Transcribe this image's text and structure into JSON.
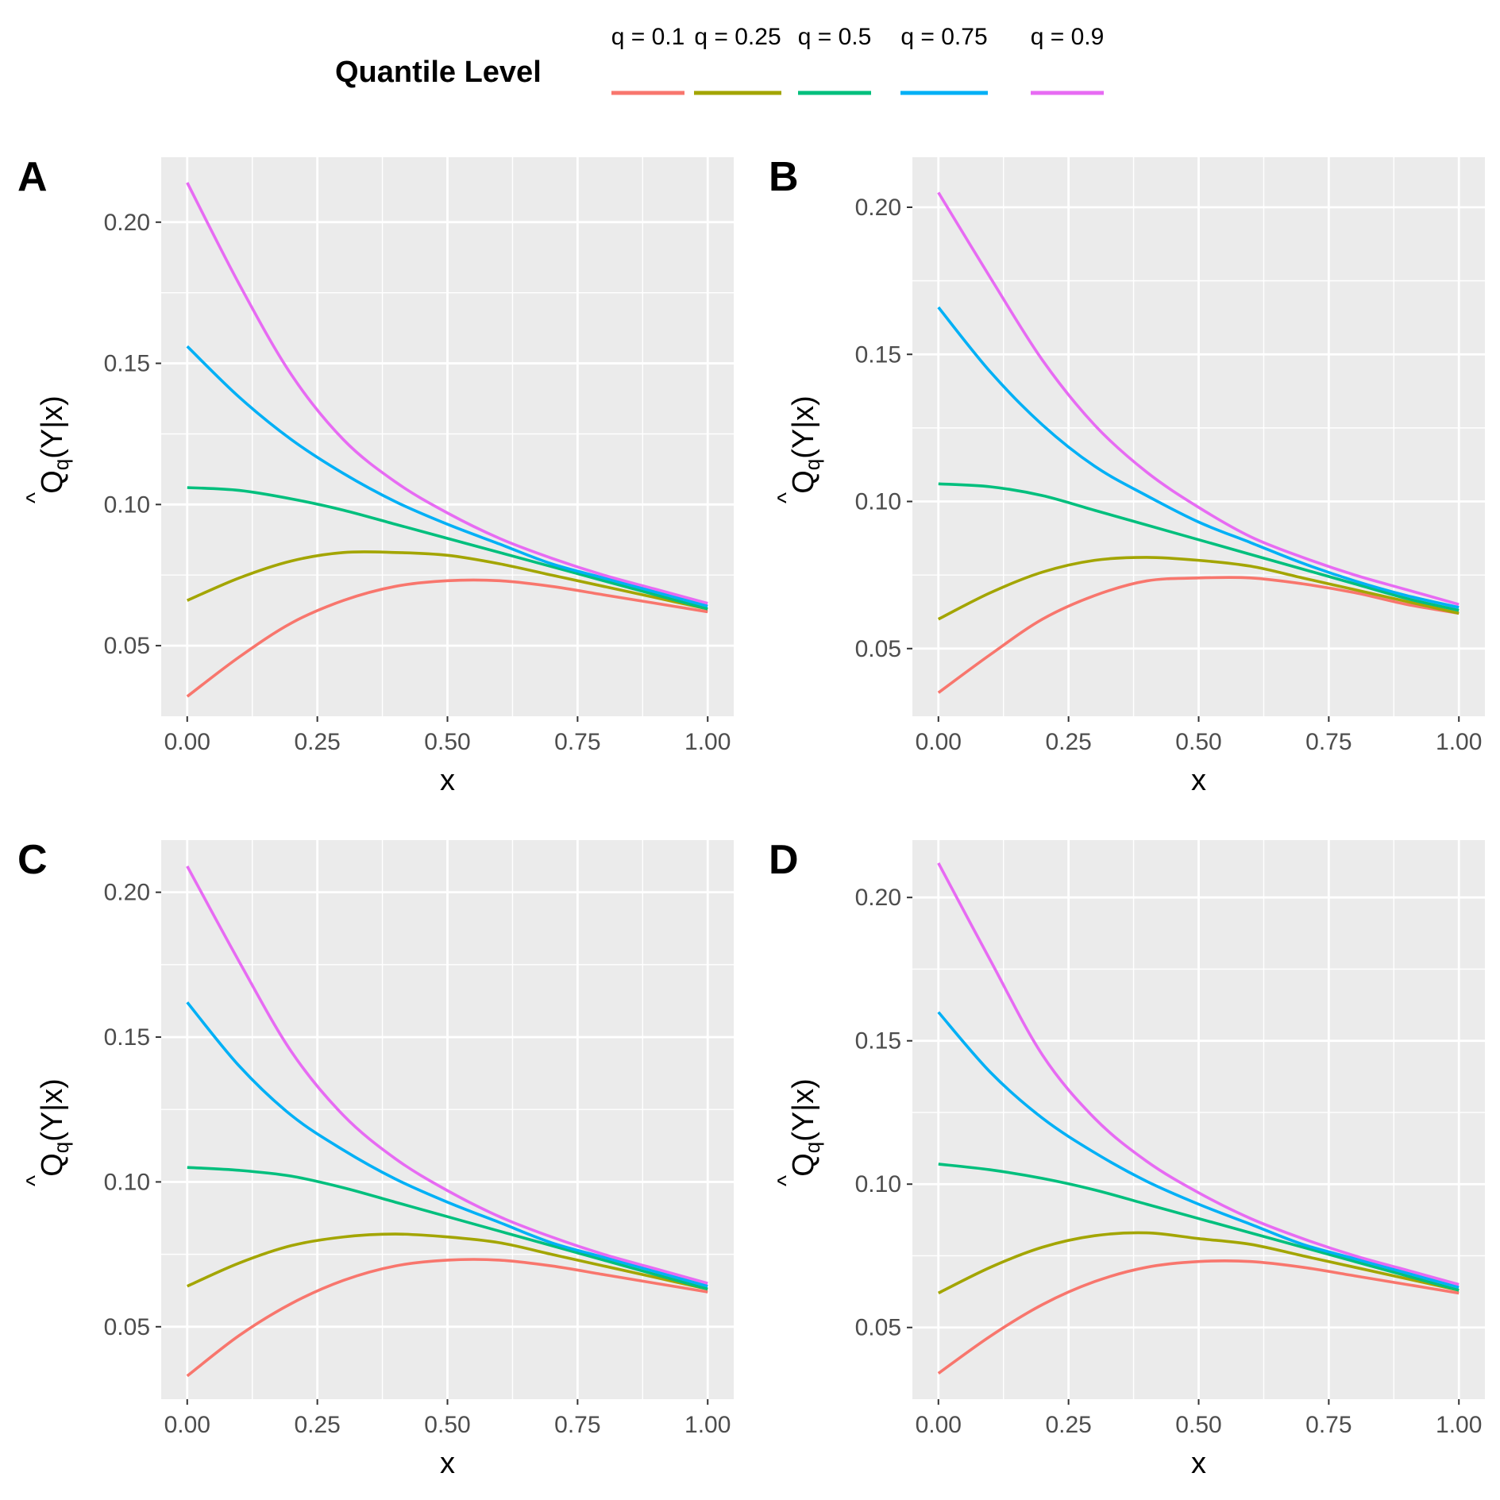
{
  "legend": {
    "title": "Quantile Level",
    "items": [
      {
        "label": "q = 0.1",
        "color": "#F8766D"
      },
      {
        "label": "q = 0.25",
        "color": "#A3A500"
      },
      {
        "label": "q = 0.5",
        "color": "#00BF7D"
      },
      {
        "label": "q = 0.75",
        "color": "#00B0F6"
      },
      {
        "label": "q = 0.9",
        "color": "#E76BF3"
      }
    ]
  },
  "axis_labels": {
    "x": "x",
    "y_hat": "^",
    "y_main": "Q",
    "y_sub": "q",
    "y_rest": "(Y|x)"
  },
  "chart_data": [
    {
      "panel": "A",
      "type": "line",
      "xlim": [
        -0.05,
        1.05
      ],
      "ylim": [
        0.025,
        0.223
      ],
      "xticks": [
        0,
        0.25,
        0.5,
        0.75,
        1
      ],
      "xtick_labels": [
        "0.00",
        "0.25",
        "0.50",
        "0.75",
        "1.00"
      ],
      "yticks": [
        0.05,
        0.1,
        0.15,
        0.2
      ],
      "ytick_labels": [
        "0.05",
        "0.10",
        "0.15",
        "0.20"
      ],
      "x": [
        0,
        0.1,
        0.2,
        0.3,
        0.4,
        0.5,
        0.6,
        0.7,
        0.8,
        0.9,
        1.0
      ],
      "series": [
        {
          "name": "q = 0.1",
          "values": [
            0.032,
            0.046,
            0.058,
            0.066,
            0.071,
            0.073,
            0.073,
            0.071,
            0.068,
            0.065,
            0.062
          ]
        },
        {
          "name": "q = 0.25",
          "values": [
            0.066,
            0.074,
            0.08,
            0.083,
            0.083,
            0.082,
            0.079,
            0.075,
            0.071,
            0.067,
            0.063
          ]
        },
        {
          "name": "q = 0.5",
          "values": [
            0.106,
            0.105,
            0.102,
            0.098,
            0.093,
            0.088,
            0.083,
            0.078,
            0.073,
            0.068,
            0.063
          ]
        },
        {
          "name": "q = 0.75",
          "values": [
            0.156,
            0.138,
            0.123,
            0.111,
            0.101,
            0.093,
            0.086,
            0.079,
            0.074,
            0.069,
            0.064
          ]
        },
        {
          "name": "q = 0.9",
          "values": [
            0.214,
            0.178,
            0.146,
            0.123,
            0.108,
            0.097,
            0.088,
            0.081,
            0.075,
            0.07,
            0.065
          ]
        }
      ]
    },
    {
      "panel": "B",
      "type": "line",
      "xlim": [
        -0.05,
        1.05
      ],
      "ylim": [
        0.027,
        0.217
      ],
      "xticks": [
        0,
        0.25,
        0.5,
        0.75,
        1
      ],
      "xtick_labels": [
        "0.00",
        "0.25",
        "0.50",
        "0.75",
        "1.00"
      ],
      "yticks": [
        0.05,
        0.1,
        0.15,
        0.2
      ],
      "ytick_labels": [
        "0.05",
        "0.10",
        "0.15",
        "0.20"
      ],
      "x": [
        0,
        0.1,
        0.2,
        0.3,
        0.4,
        0.5,
        0.6,
        0.7,
        0.8,
        0.9,
        1.0
      ],
      "series": [
        {
          "name": "q = 0.1",
          "values": [
            0.035,
            0.048,
            0.06,
            0.068,
            0.073,
            0.074,
            0.074,
            0.072,
            0.069,
            0.065,
            0.062
          ]
        },
        {
          "name": "q = 0.25",
          "values": [
            0.06,
            0.069,
            0.076,
            0.08,
            0.081,
            0.08,
            0.078,
            0.074,
            0.07,
            0.066,
            0.062
          ]
        },
        {
          "name": "q = 0.5",
          "values": [
            0.106,
            0.105,
            0.102,
            0.097,
            0.092,
            0.087,
            0.082,
            0.077,
            0.072,
            0.067,
            0.063
          ]
        },
        {
          "name": "q = 0.75",
          "values": [
            0.166,
            0.144,
            0.126,
            0.112,
            0.102,
            0.093,
            0.086,
            0.079,
            0.073,
            0.068,
            0.064
          ]
        },
        {
          "name": "q = 0.9",
          "values": [
            0.205,
            0.176,
            0.148,
            0.126,
            0.11,
            0.098,
            0.088,
            0.081,
            0.075,
            0.07,
            0.065
          ]
        }
      ]
    },
    {
      "panel": "C",
      "type": "line",
      "xlim": [
        -0.05,
        1.05
      ],
      "ylim": [
        0.025,
        0.218
      ],
      "xticks": [
        0,
        0.25,
        0.5,
        0.75,
        1
      ],
      "xtick_labels": [
        "0.00",
        "0.25",
        "0.50",
        "0.75",
        "1.00"
      ],
      "yticks": [
        0.05,
        0.1,
        0.15,
        0.2
      ],
      "ytick_labels": [
        "0.05",
        "0.10",
        "0.15",
        "0.20"
      ],
      "x": [
        0,
        0.1,
        0.2,
        0.3,
        0.4,
        0.5,
        0.6,
        0.7,
        0.8,
        0.9,
        1.0
      ],
      "series": [
        {
          "name": "q = 0.1",
          "values": [
            0.033,
            0.047,
            0.058,
            0.066,
            0.071,
            0.073,
            0.073,
            0.071,
            0.068,
            0.065,
            0.062
          ]
        },
        {
          "name": "q = 0.25",
          "values": [
            0.064,
            0.072,
            0.078,
            0.081,
            0.082,
            0.081,
            0.079,
            0.075,
            0.071,
            0.067,
            0.063
          ]
        },
        {
          "name": "q = 0.5",
          "values": [
            0.105,
            0.104,
            0.102,
            0.098,
            0.093,
            0.088,
            0.083,
            0.078,
            0.073,
            0.068,
            0.063
          ]
        },
        {
          "name": "q = 0.75",
          "values": [
            0.162,
            0.14,
            0.123,
            0.111,
            0.101,
            0.093,
            0.086,
            0.079,
            0.074,
            0.069,
            0.064
          ]
        },
        {
          "name": "q = 0.9",
          "values": [
            0.209,
            0.176,
            0.145,
            0.123,
            0.108,
            0.097,
            0.088,
            0.081,
            0.075,
            0.07,
            0.065
          ]
        }
      ]
    },
    {
      "panel": "D",
      "type": "line",
      "xlim": [
        -0.05,
        1.05
      ],
      "ylim": [
        0.025,
        0.22
      ],
      "xticks": [
        0,
        0.25,
        0.5,
        0.75,
        1
      ],
      "xtick_labels": [
        "0.00",
        "0.25",
        "0.50",
        "0.75",
        "1.00"
      ],
      "yticks": [
        0.05,
        0.1,
        0.15,
        0.2
      ],
      "ytick_labels": [
        "0.05",
        "0.10",
        "0.15",
        "0.20"
      ],
      "x": [
        0,
        0.1,
        0.2,
        0.3,
        0.4,
        0.5,
        0.6,
        0.7,
        0.8,
        0.9,
        1.0
      ],
      "series": [
        {
          "name": "q = 0.1",
          "values": [
            0.034,
            0.047,
            0.058,
            0.066,
            0.071,
            0.073,
            0.073,
            0.071,
            0.068,
            0.065,
            0.062
          ]
        },
        {
          "name": "q = 0.25",
          "values": [
            0.062,
            0.071,
            0.078,
            0.082,
            0.083,
            0.081,
            0.079,
            0.075,
            0.071,
            0.067,
            0.063
          ]
        },
        {
          "name": "q = 0.5",
          "values": [
            0.107,
            0.105,
            0.102,
            0.098,
            0.093,
            0.088,
            0.083,
            0.078,
            0.073,
            0.068,
            0.063
          ]
        },
        {
          "name": "q = 0.75",
          "values": [
            0.16,
            0.139,
            0.123,
            0.111,
            0.101,
            0.093,
            0.086,
            0.079,
            0.074,
            0.069,
            0.064
          ]
        },
        {
          "name": "q = 0.9",
          "values": [
            0.212,
            0.178,
            0.145,
            0.123,
            0.108,
            0.097,
            0.088,
            0.081,
            0.075,
            0.07,
            0.065
          ]
        }
      ]
    }
  ]
}
